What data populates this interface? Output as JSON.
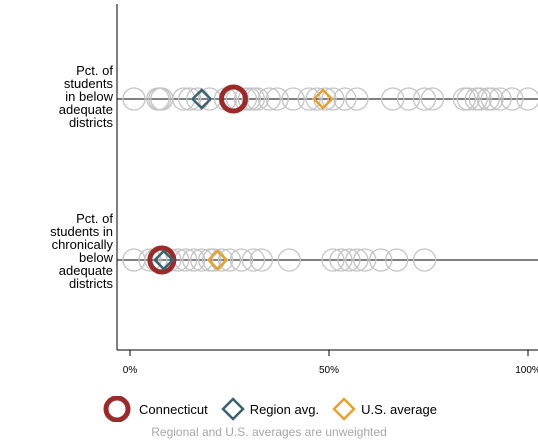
{
  "chart_data": {
    "type": "scatter",
    "categories": [
      "Pct. of\nstudents\nin below\nadequate\ndistricts",
      "Pct. of\nstudents in\nchronically\nbelow\nadequate\ndistricts"
    ],
    "xlim": [
      0,
      100
    ],
    "x_ticks": [
      0,
      50,
      100
    ],
    "x_tick_labels": [
      "0%",
      "50%",
      "100%"
    ],
    "grid": false,
    "legend_position": "bottom",
    "series": [
      {
        "name": "",
        "marker": "hollow-circle",
        "color": "#c4c4c4",
        "values": [
          [
            1,
            7,
            7.5,
            8,
            13.5,
            15,
            17,
            20,
            24,
            26,
            27,
            29,
            30,
            31,
            32,
            35,
            37,
            41,
            45,
            47,
            49,
            51,
            54,
            57,
            66,
            70,
            74,
            76,
            84,
            85,
            87,
            88,
            90,
            91,
            93,
            96,
            100
          ],
          [
            1,
            5,
            6.5,
            8,
            10,
            12,
            14,
            16,
            18,
            20,
            21,
            23,
            25,
            28,
            31,
            33,
            40,
            51,
            53,
            55,
            57,
            59,
            63,
            67,
            74
          ]
        ]
      },
      {
        "name": "Connecticut",
        "marker": "circle",
        "color": "#9b2b2b",
        "values": [
          26,
          8
        ]
      },
      {
        "name": "Region avg.",
        "marker": "diamond",
        "color": "#3c6170",
        "values": [
          18,
          8.5
        ]
      },
      {
        "name": "U.S. average",
        "marker": "diamond",
        "color": "#e5a131",
        "values": [
          48.5,
          22
        ]
      }
    ],
    "note": "Regional and U.S. averages are unweighted"
  }
}
